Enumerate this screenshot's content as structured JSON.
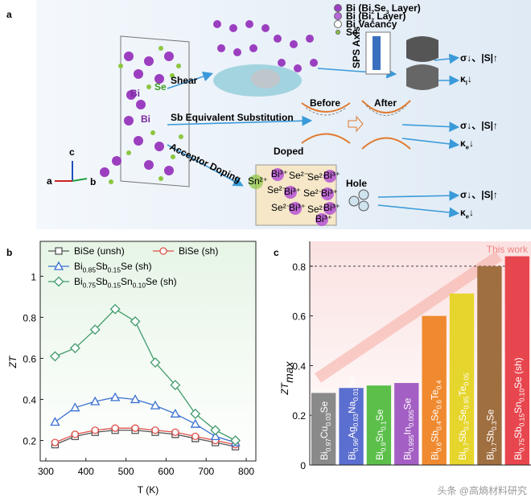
{
  "panels": [
    "a",
    "b",
    "c"
  ],
  "schematic": {
    "legend": [
      [
        "Bi (Bi",
        "2",
        "Se",
        "3",
        " Layer)"
      ],
      [
        "Bi (Bi",
        "2",
        " Layer)"
      ],
      "Bi Vacancy",
      "Se"
    ],
    "crystal_labels": [
      "Se",
      "Bi",
      "Bi"
    ],
    "axes": [
      "a",
      "b",
      "c"
    ],
    "routes": [
      "Shear",
      "Sb Equivalent Substitution",
      "Acceptor Doping"
    ],
    "sps": "SPS Axis",
    "band": [
      "Before",
      "After"
    ],
    "doped": "Doped",
    "dopant": "Sn²⁺",
    "ions": [
      "Bi³⁺",
      "Se²⁻",
      "Se²⁻",
      "Bi³⁺",
      "Se²⁻",
      "Bi³⁺",
      "Se²⁻",
      "Bi³⁺",
      "Se²⁻",
      "Bi³⁺",
      "Se²⁻",
      "Bi³⁺",
      "Bi³⁺"
    ],
    "hole": "Hole",
    "effects": [
      "σ↓、|S|↑",
      [
        "κ",
        "l",
        "↓"
      ],
      "σ↓、|S|↑",
      [
        "κ",
        "e",
        "↓"
      ],
      "σ↓、|S|↑",
      [
        "κ",
        "e",
        "↓"
      ]
    ]
  },
  "watermark": "头条 @高熵材料研究",
  "chart_data": [
    {
      "type": "line",
      "ylabel": "ZT",
      "xlabel": "T (K)",
      "x": [
        323,
        373,
        423,
        473,
        523,
        573,
        623,
        673,
        723,
        773
      ],
      "xlim": [
        286,
        824
      ],
      "xticks": [
        300,
        400,
        500,
        600,
        700,
        800
      ],
      "ylim": [
        0.1,
        1.17
      ],
      "yticks": [
        0.2,
        0.4,
        0.6,
        0.8,
        1.0
      ],
      "series": [
        {
          "name": "BiSe (unsh)",
          "color": "#555555",
          "marker": "square",
          "values": [
            0.18,
            0.22,
            0.24,
            0.25,
            0.25,
            0.24,
            0.23,
            0.21,
            0.19,
            0.17
          ]
        },
        {
          "name": "BiSe (sh)",
          "color": "#e0504a",
          "marker": "circle",
          "values": [
            0.19,
            0.23,
            0.25,
            0.26,
            0.26,
            0.25,
            0.24,
            0.22,
            0.2,
            0.18
          ]
        },
        {
          "name": [
            "Bi",
            "0.85",
            "Sb",
            "0.15",
            "Se (sh)"
          ],
          "color": "#3a6fd1",
          "marker": "triangle",
          "values": [
            0.29,
            0.36,
            0.39,
            0.41,
            0.4,
            0.37,
            0.33,
            0.28,
            0.22,
            0.19
          ]
        },
        {
          "name": [
            "Bi",
            "0.75",
            "Sb",
            "0.15",
            "Sn",
            "0.10",
            "Se (sh)"
          ],
          "color": "#3f9a6a",
          "marker": "diamond",
          "values": [
            0.61,
            0.65,
            0.74,
            0.84,
            0.78,
            0.58,
            0.47,
            0.33,
            0.25,
            0.2
          ]
        }
      ]
    },
    {
      "type": "bar",
      "ylabel": [
        "ZT",
        "max"
      ],
      "annotation": "This work",
      "hline": 0.8,
      "ylim": [
        0,
        0.9
      ],
      "yticks": [
        0.0,
        0.2,
        0.4,
        0.6,
        0.8
      ],
      "categories": [
        [
          "Bi",
          "0.97",
          "Cu",
          "0.03",
          "Se"
        ],
        [
          "Bi",
          "0.96",
          "Ag",
          "0.03",
          "Na",
          "0.01",
          "Se"
        ],
        [
          "Bi",
          "0.9",
          "Sn",
          "0.1",
          "Se"
        ],
        [
          "Bi",
          "0.995",
          "In",
          "0.005",
          "Se"
        ],
        [
          "Bi",
          "0.6",
          "Sb",
          "0.4",
          "Se",
          "0.6",
          "Te",
          "0.4"
        ],
        [
          "Bi",
          "0.7",
          "Sb",
          "0.3",
          "Se",
          "0.95",
          "Te",
          "0.05"
        ],
        [
          "Bi",
          "0.7",
          "Sb",
          "0.3",
          "Se"
        ],
        [
          "Bi",
          "0.75",
          "Sb",
          "0.15",
          "Sn",
          "0.10",
          "Se (sh)"
        ]
      ],
      "values": [
        0.29,
        0.31,
        0.32,
        0.33,
        0.6,
        0.69,
        0.8,
        0.84
      ],
      "colors": [
        "#8a8a8a",
        "#5b6fd0",
        "#5bbf4a",
        "#a45fc4",
        "#f08a30",
        "#e6d52c",
        "#a06f40",
        "#e8464e"
      ]
    }
  ]
}
